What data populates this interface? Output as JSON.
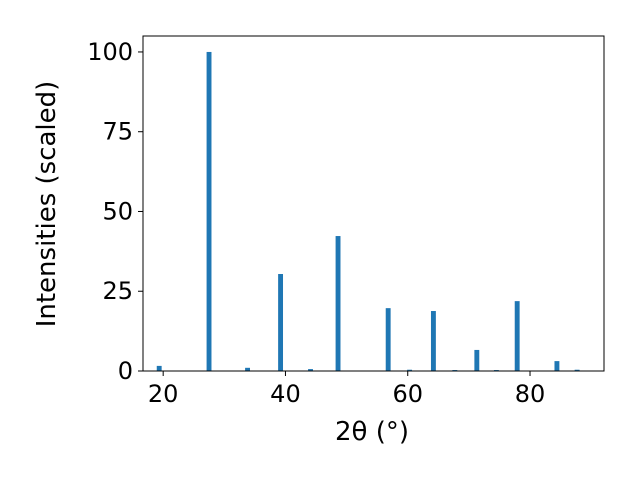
{
  "chart_data": {
    "type": "bar",
    "x": [
      19.35,
      27.5,
      33.8,
      39.2,
      44.1,
      48.6,
      56.8,
      60.3,
      64.2,
      67.7,
      71.3,
      74.5,
      77.9,
      84.4,
      87.7
    ],
    "values": [
      1.6,
      100,
      1,
      30.4,
      0.6,
      42.3,
      19.7,
      0.4,
      18.8,
      0.3,
      6.6,
      0.3,
      21.9,
      3.1,
      0.4
    ],
    "color": "#1f77b4",
    "xlabel": "2θ (°)",
    "ylabel": "Intensities (scaled)",
    "xlim": [
      16.7,
      92.1
    ],
    "ylim": [
      0,
      105
    ],
    "xticks": [
      20,
      40,
      60,
      80
    ],
    "yticks": [
      0,
      25,
      50,
      75,
      100
    ],
    "grid": false
  }
}
